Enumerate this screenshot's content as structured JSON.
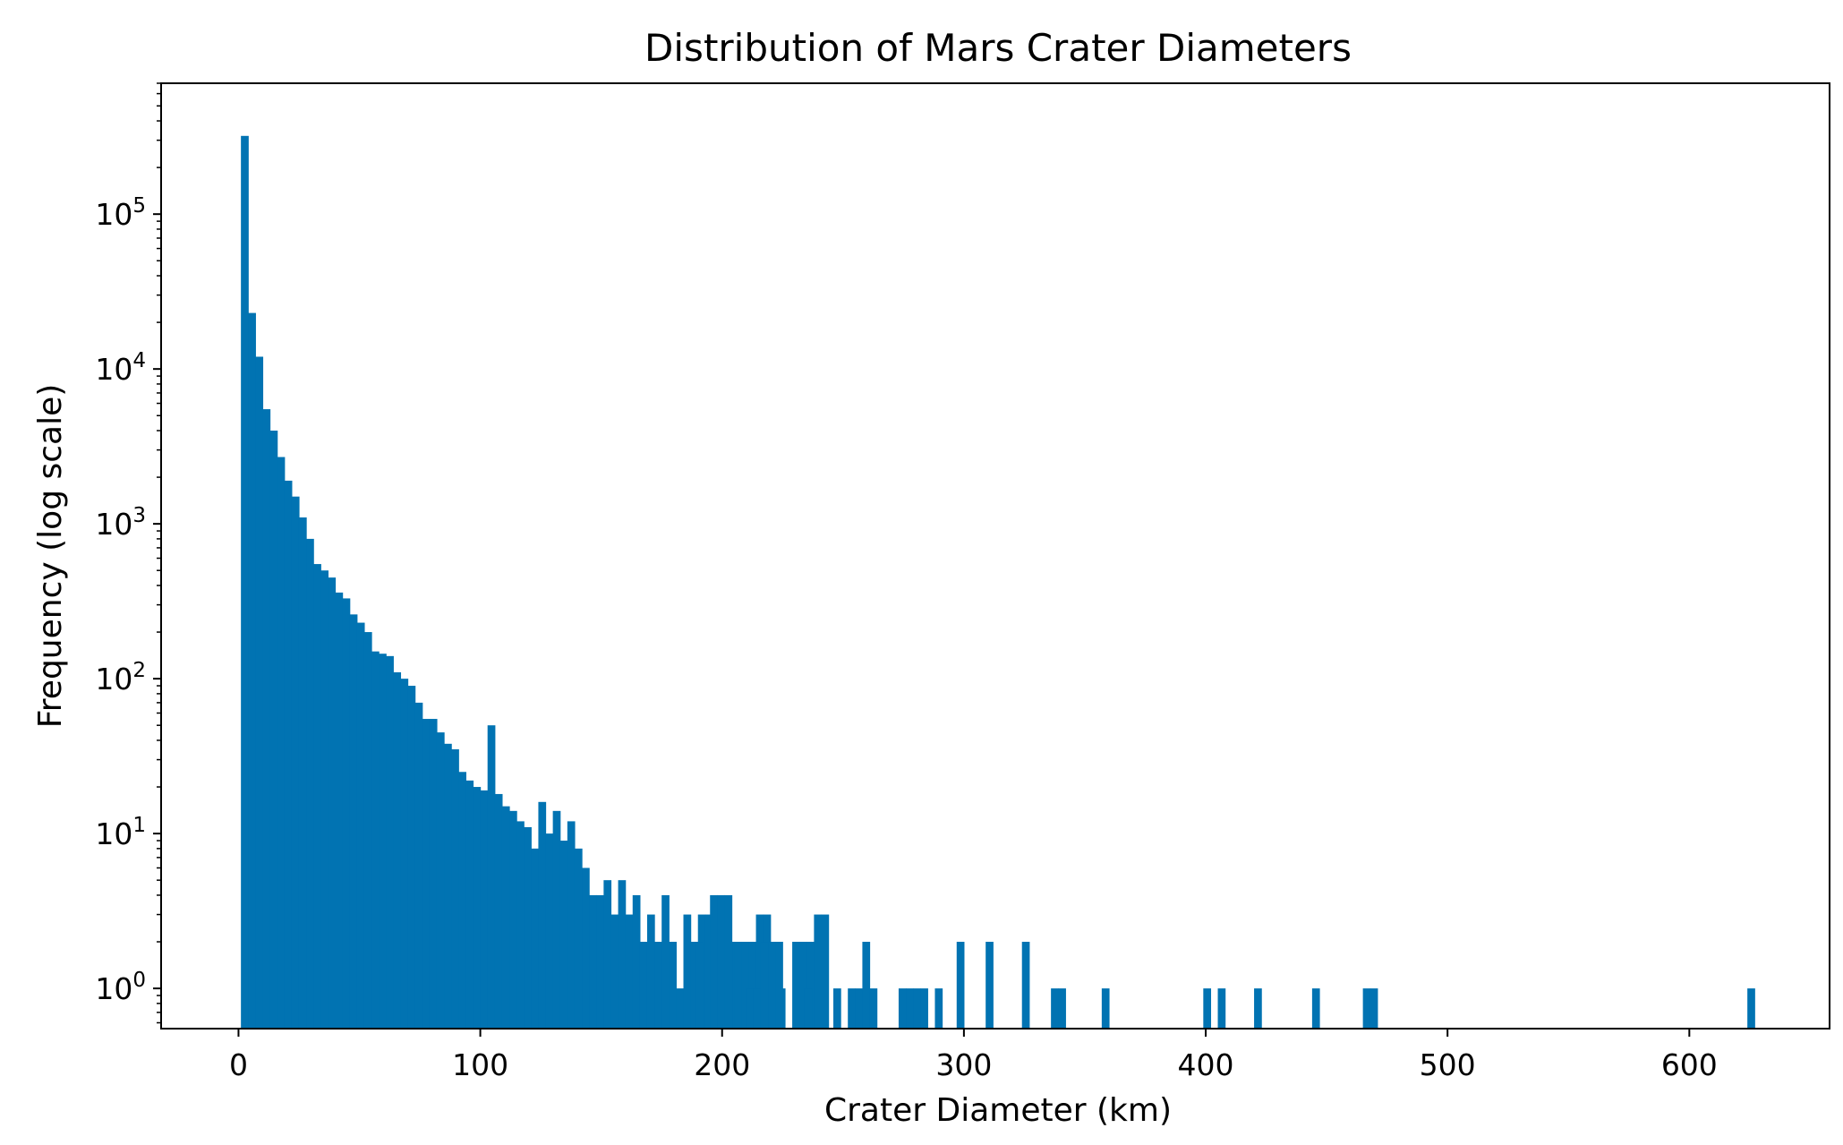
{
  "chart_data": {
    "type": "bar",
    "title": "Distribution of Mars Crater Diameters",
    "xlabel": "Crater Diameter (km)",
    "ylabel": "Frequency (log scale)",
    "x_scale": "linear",
    "y_scale": "log",
    "xlim": [
      -32,
      658
    ],
    "ylim": [
      0.55,
      700000
    ],
    "x_ticks": [
      0,
      100,
      200,
      300,
      400,
      500,
      600
    ],
    "x_tick_labels": [
      "0",
      "100",
      "200",
      "300",
      "400",
      "500",
      "600"
    ],
    "y_ticks": [
      1,
      10,
      100,
      1000,
      10000,
      100000
    ],
    "y_tick_labels": [
      {
        "base": "10",
        "exp": "0"
      },
      {
        "base": "10",
        "exp": "1"
      },
      {
        "base": "10",
        "exp": "2"
      },
      {
        "base": "10",
        "exp": "3"
      },
      {
        "base": "10",
        "exp": "4"
      },
      {
        "base": "10",
        "exp": "5"
      }
    ],
    "grid": false,
    "legend": "none",
    "bar_color": "#0173b2",
    "bin_width_km": 3,
    "bin_start_km": 1,
    "bin_start_count": 0,
    "counts": [
      320000,
      23000,
      12000,
      5500,
      4000,
      2700,
      1900,
      1500,
      1100,
      800,
      550,
      500,
      450,
      360,
      330,
      260,
      230,
      200,
      150,
      145,
      140,
      110,
      100,
      90,
      70,
      55,
      55,
      45,
      38,
      35,
      25,
      22,
      20,
      19,
      50,
      18,
      15,
      14,
      12,
      11,
      8,
      16,
      10,
      14,
      9,
      12,
      8,
      6,
      4,
      4,
      5,
      3,
      5,
      3,
      4,
      2,
      3,
      2,
      4,
      2,
      1,
      3,
      2,
      3,
      3,
      1,
      3,
      2,
      2,
      2,
      2,
      3,
      3,
      0,
      1,
      0,
      2,
      2,
      2,
      3,
      3,
      0,
      0,
      0,
      0,
      0,
      0,
      0,
      0,
      0,
      0,
      0,
      0,
      0,
      0,
      0,
      0,
      0,
      0,
      0,
      0,
      0,
      0,
      0,
      0,
      0,
      0,
      0,
      0,
      0,
      0,
      0,
      0,
      0,
      0,
      0,
      0,
      0,
      0,
      0,
      0,
      0,
      0,
      0,
      0,
      0,
      0,
      0,
      0,
      0,
      0,
      0,
      0,
      0,
      0,
      0,
      0,
      0,
      0,
      0,
      0,
      0,
      0,
      0,
      0,
      0,
      0,
      0,
      0,
      0,
      0,
      0,
      0,
      0,
      0,
      0,
      0,
      0,
      0,
      0,
      0,
      0,
      0,
      0,
      0,
      0,
      0,
      0,
      0,
      0,
      0,
      0,
      0,
      0,
      0,
      0,
      0,
      0,
      0,
      0,
      0,
      0,
      0,
      0,
      0,
      0,
      0,
      0,
      0,
      0,
      0,
      0,
      0,
      0,
      0,
      0,
      0,
      0,
      0,
      0,
      0,
      0,
      0,
      0,
      0,
      0,
      0,
      0,
      0,
      0
    ],
    "sparse_bins": [
      {
        "x": 189,
        "count": 2
      },
      {
        "x": 195,
        "count": 4
      },
      {
        "x": 198,
        "count": 4
      },
      {
        "x": 201,
        "count": 4
      },
      {
        "x": 210,
        "count": 1
      },
      {
        "x": 213,
        "count": 1
      },
      {
        "x": 216,
        "count": 2
      },
      {
        "x": 219,
        "count": 2
      },
      {
        "x": 222,
        "count": 2
      },
      {
        "x": 234,
        "count": 1
      },
      {
        "x": 246,
        "count": 1
      },
      {
        "x": 252,
        "count": 1
      },
      {
        "x": 255,
        "count": 1
      },
      {
        "x": 258,
        "count": 2
      },
      {
        "x": 261,
        "count": 1
      },
      {
        "x": 273,
        "count": 1
      },
      {
        "x": 276,
        "count": 1
      },
      {
        "x": 279,
        "count": 1
      },
      {
        "x": 282,
        "count": 1
      },
      {
        "x": 288,
        "count": 1
      },
      {
        "x": 297,
        "count": 2
      },
      {
        "x": 309,
        "count": 2
      },
      {
        "x": 324,
        "count": 2
      },
      {
        "x": 336,
        "count": 1
      },
      {
        "x": 339,
        "count": 1
      },
      {
        "x": 357,
        "count": 1
      },
      {
        "x": 399,
        "count": 1
      },
      {
        "x": 405,
        "count": 1
      },
      {
        "x": 420,
        "count": 1
      },
      {
        "x": 444,
        "count": 1
      },
      {
        "x": 465,
        "count": 1
      },
      {
        "x": 468,
        "count": 1
      },
      {
        "x": 624,
        "count": 1
      }
    ]
  }
}
